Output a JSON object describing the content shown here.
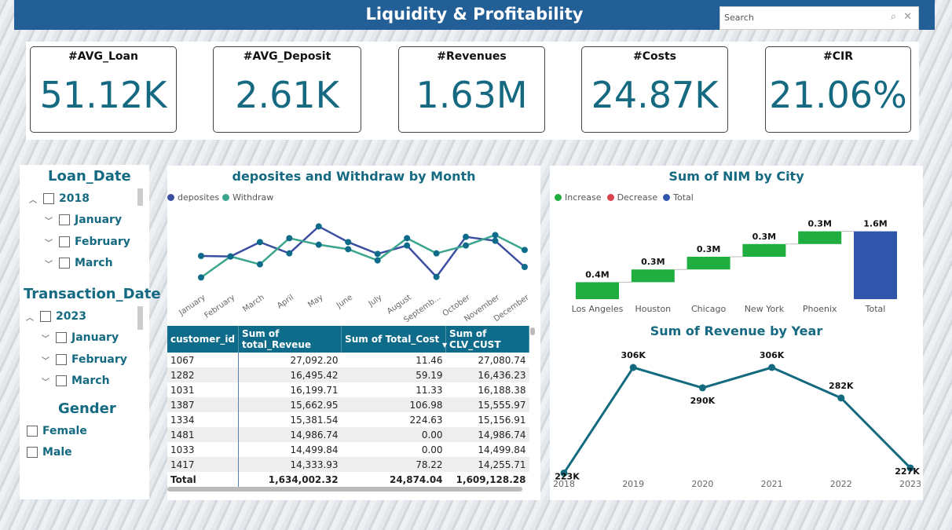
{
  "header": {
    "title": "Liquidity & Profitability",
    "search_placeholder": "Search"
  },
  "kpis": [
    {
      "label": "#AVG_Loan",
      "value": "51.12K"
    },
    {
      "label": "#AVG_Deposit",
      "value": "2.61K"
    },
    {
      "label": "#Revenues",
      "value": "1.63M"
    },
    {
      "label": "#Costs",
      "value": "24.87K"
    },
    {
      "label": "#CIR",
      "value": "21.06%"
    }
  ],
  "slicers": {
    "loan_date": {
      "title": "Loan_Date",
      "year": "2018",
      "months": [
        "January",
        "February",
        "March"
      ]
    },
    "transaction_date": {
      "title": "Transaction_Date",
      "year": "2023",
      "months": [
        "January",
        "February",
        "March"
      ]
    },
    "gender": {
      "title": "Gender",
      "options": [
        "Female",
        "Male"
      ]
    }
  },
  "colors": {
    "header": "#225f96",
    "accent": "#156a82",
    "deposits": "#3b4fa0",
    "withdraw": "#3aa58c",
    "increase": "#1fae3f",
    "decrease": "#d9434e",
    "total": "#2f56ab"
  },
  "chart_data": [
    {
      "type": "line",
      "title": "deposites and Withdraw by Month",
      "legend_position": "top-left",
      "categories": [
        "January",
        "February",
        "March",
        "April",
        "May",
        "June",
        "July",
        "August",
        "Septemb...",
        "October",
        "November",
        "December"
      ],
      "series": [
        {
          "name": "deposites",
          "values": [
            142,
            140,
            195,
            152,
            255,
            195,
            150,
            182,
            62,
            215,
            200,
            100
          ]
        },
        {
          "name": "Withdraw",
          "values": [
            60,
            140,
            110,
            210,
            185,
            168,
            125,
            210,
            152,
            182,
            222,
            165
          ]
        }
      ]
    },
    {
      "type": "bar",
      "subtype": "waterfall",
      "title": "Sum of NIM by City",
      "legend": [
        "Increase",
        "Decrease",
        "Total"
      ],
      "legend_position": "top-left",
      "categories": [
        "Los Angeles",
        "Houston",
        "Chicago",
        "New York",
        "Phoenix",
        "Total"
      ],
      "values": [
        0.4,
        0.3,
        0.3,
        0.3,
        0.3,
        1.6
      ],
      "labels": [
        "0.4M",
        "0.3M",
        "0.3M",
        "0.3M",
        "0.3M",
        "1.6M"
      ]
    },
    {
      "type": "line",
      "title": "Sum of Revenue by Year",
      "categories": [
        "2018",
        "2019",
        "2020",
        "2021",
        "2022",
        "2023"
      ],
      "values": [
        223,
        306,
        290,
        306,
        282,
        227
      ],
      "labels": [
        "223K",
        "306K",
        "290K",
        "306K",
        "282K",
        "227K"
      ]
    }
  ],
  "table": {
    "columns": [
      "customer_id",
      "Sum of total_Reveue",
      "Sum of Total_Cost",
      "Sum of CLV_CUST"
    ],
    "rows": [
      [
        "1067",
        "27,092.20",
        "11.46",
        "27,080.74"
      ],
      [
        "1282",
        "16,495.42",
        "59.19",
        "16,436.23"
      ],
      [
        "1031",
        "16,199.71",
        "11.33",
        "16,188.38"
      ],
      [
        "1387",
        "15,662.95",
        "106.98",
        "15,555.97"
      ],
      [
        "1334",
        "15,381.54",
        "224.63",
        "15,156.91"
      ],
      [
        "1481",
        "14,986.74",
        "0.00",
        "14,986.74"
      ],
      [
        "1033",
        "14,499.84",
        "0.00",
        "14,499.84"
      ],
      [
        "1417",
        "14,333.93",
        "78.22",
        "14,255.71"
      ]
    ],
    "total": [
      "Total",
      "1,634,002.32",
      "24,874.04",
      "1,609,128.28"
    ]
  }
}
